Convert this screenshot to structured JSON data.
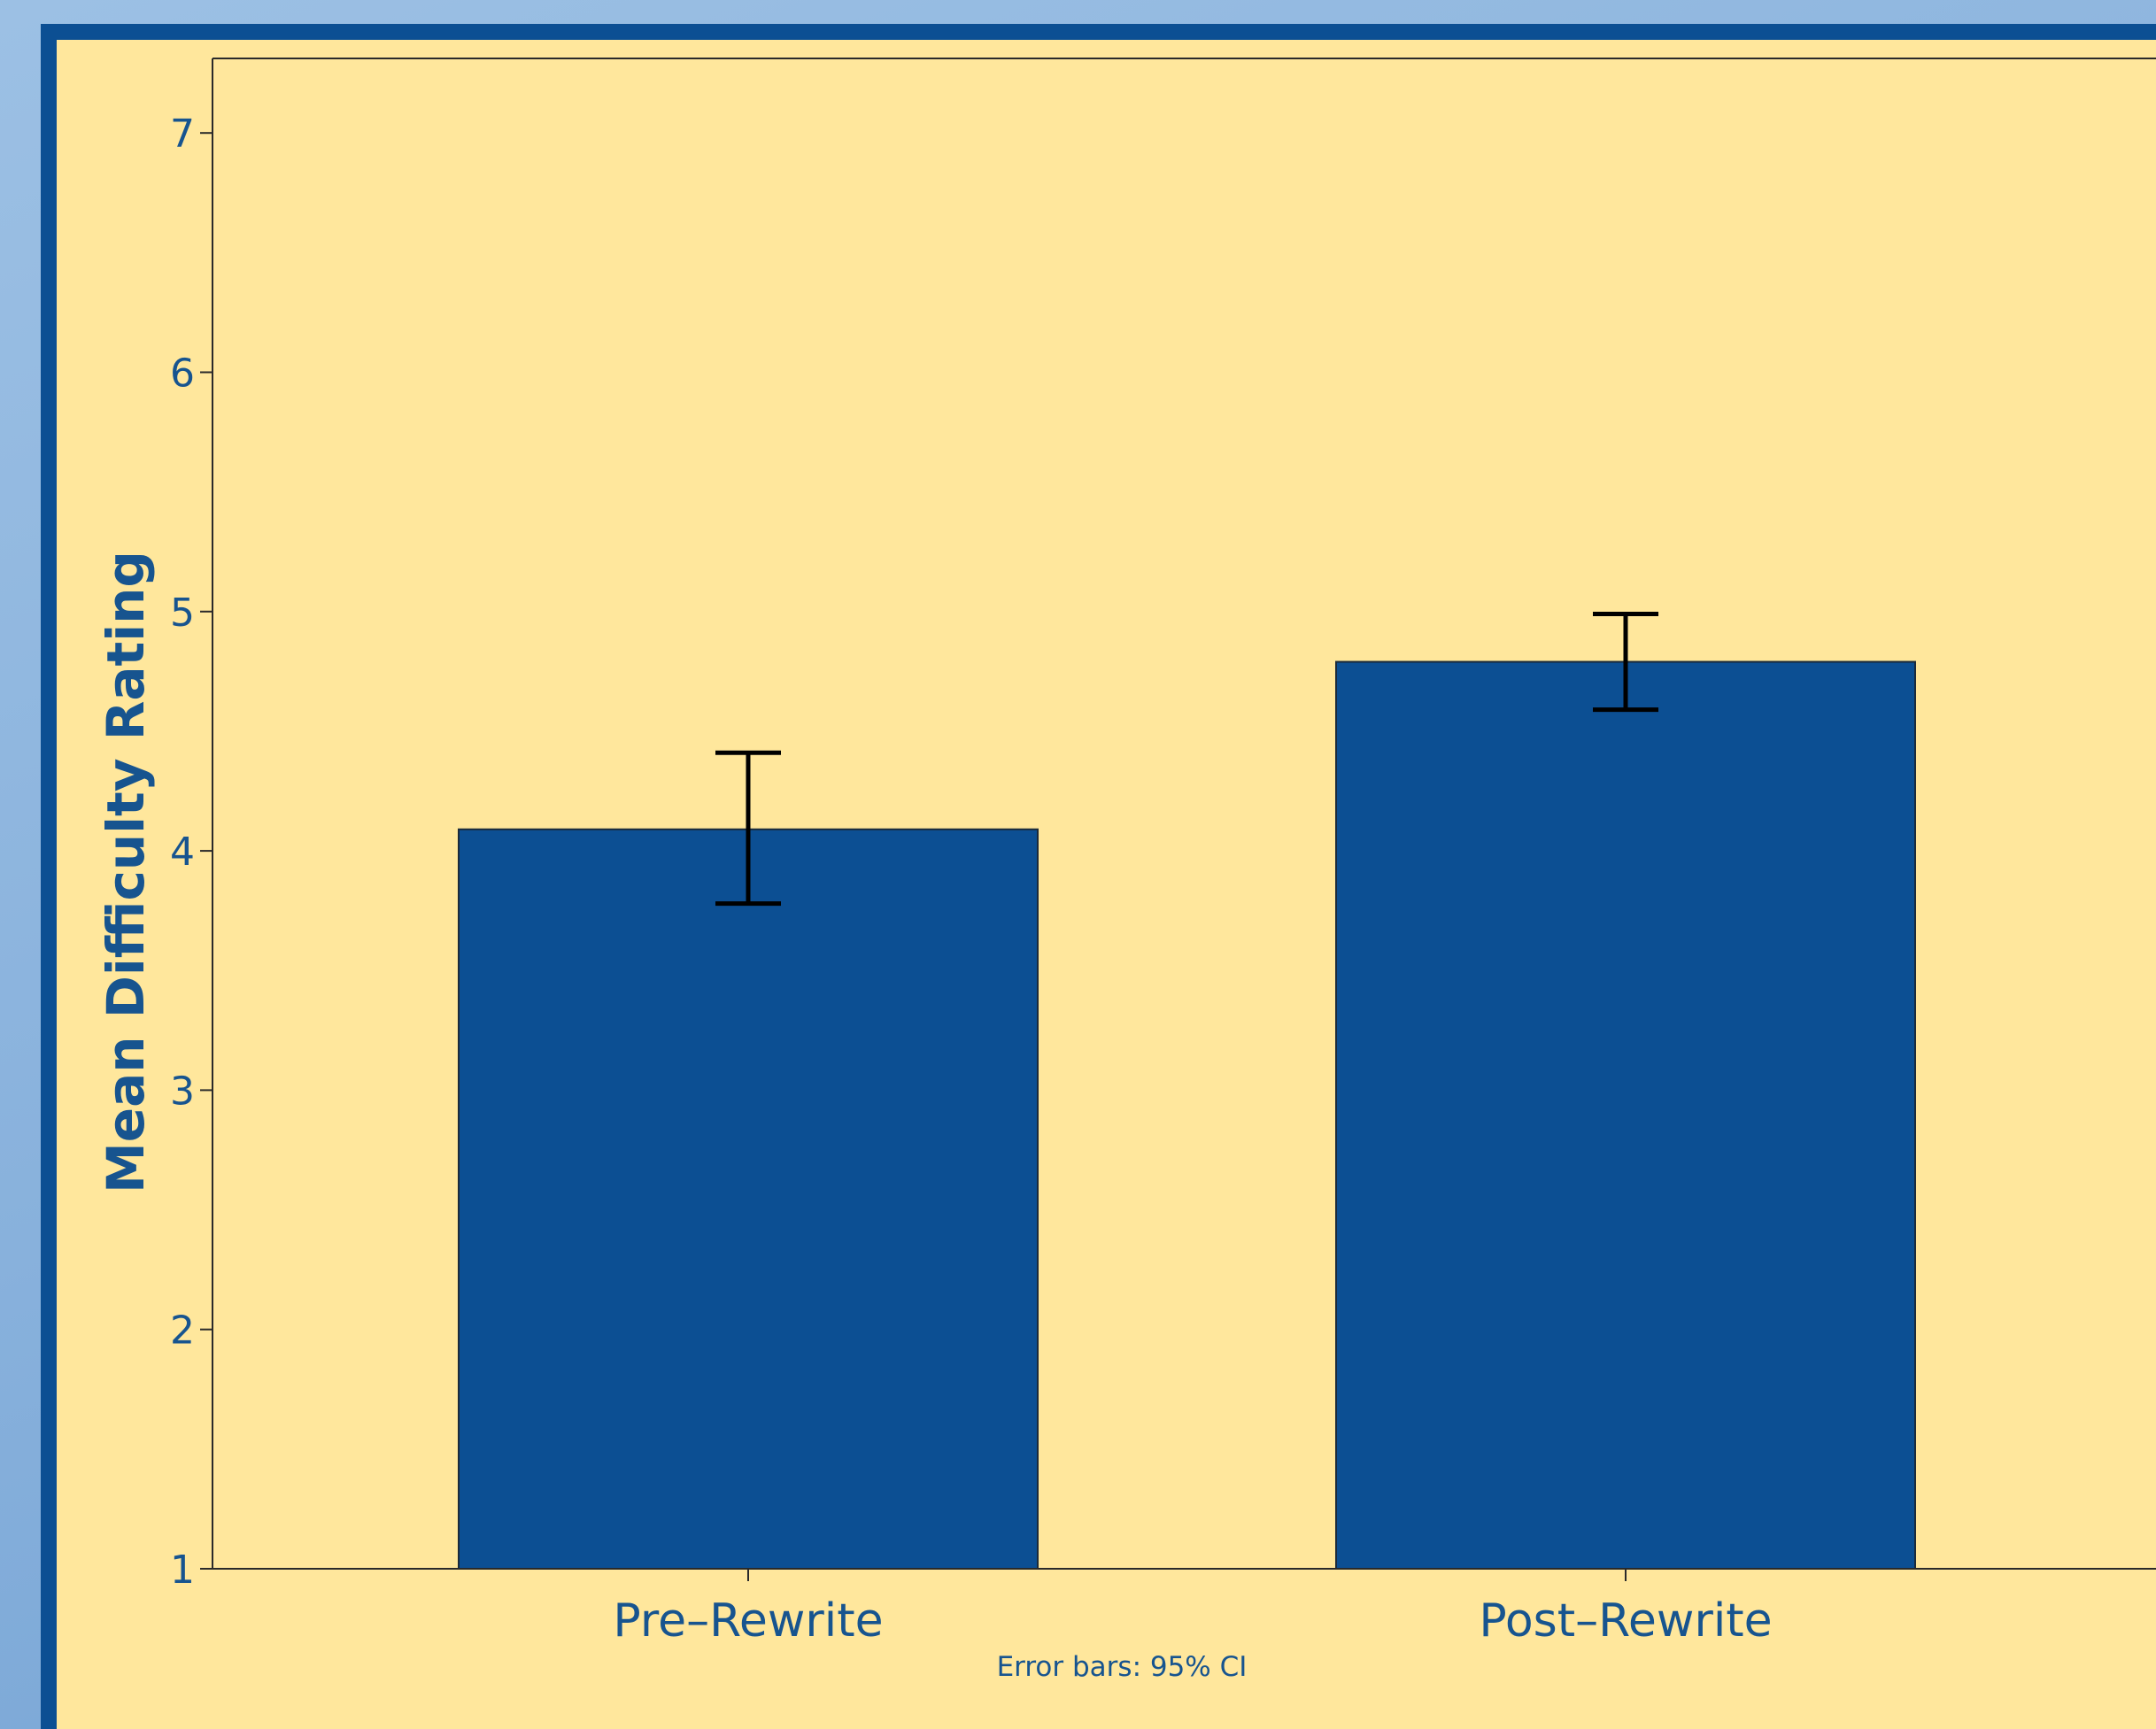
{
  "colors": {
    "panel_background": "#ffe79c",
    "frame_border": "#0c4f93",
    "bar_fill": "#0c4f93",
    "text": "#17548f",
    "axis": "#2a2a2a"
  },
  "chart_data": {
    "type": "bar",
    "categories": [
      "Pre–Rewrite",
      "Post–Rewrite"
    ],
    "values": [
      4.09,
      4.79
    ],
    "error_bars": {
      "lower": [
        3.78,
        4.59
      ],
      "upper": [
        4.41,
        4.99
      ]
    },
    "ylabel": "Mean Difficulty Rating",
    "xlabel": "",
    "ylim": [
      1,
      7.3
    ],
    "yticks": [
      "1",
      "2",
      "3",
      "4",
      "5",
      "6",
      "7"
    ],
    "note": "Error bars: 95% CI",
    "grid": false
  }
}
